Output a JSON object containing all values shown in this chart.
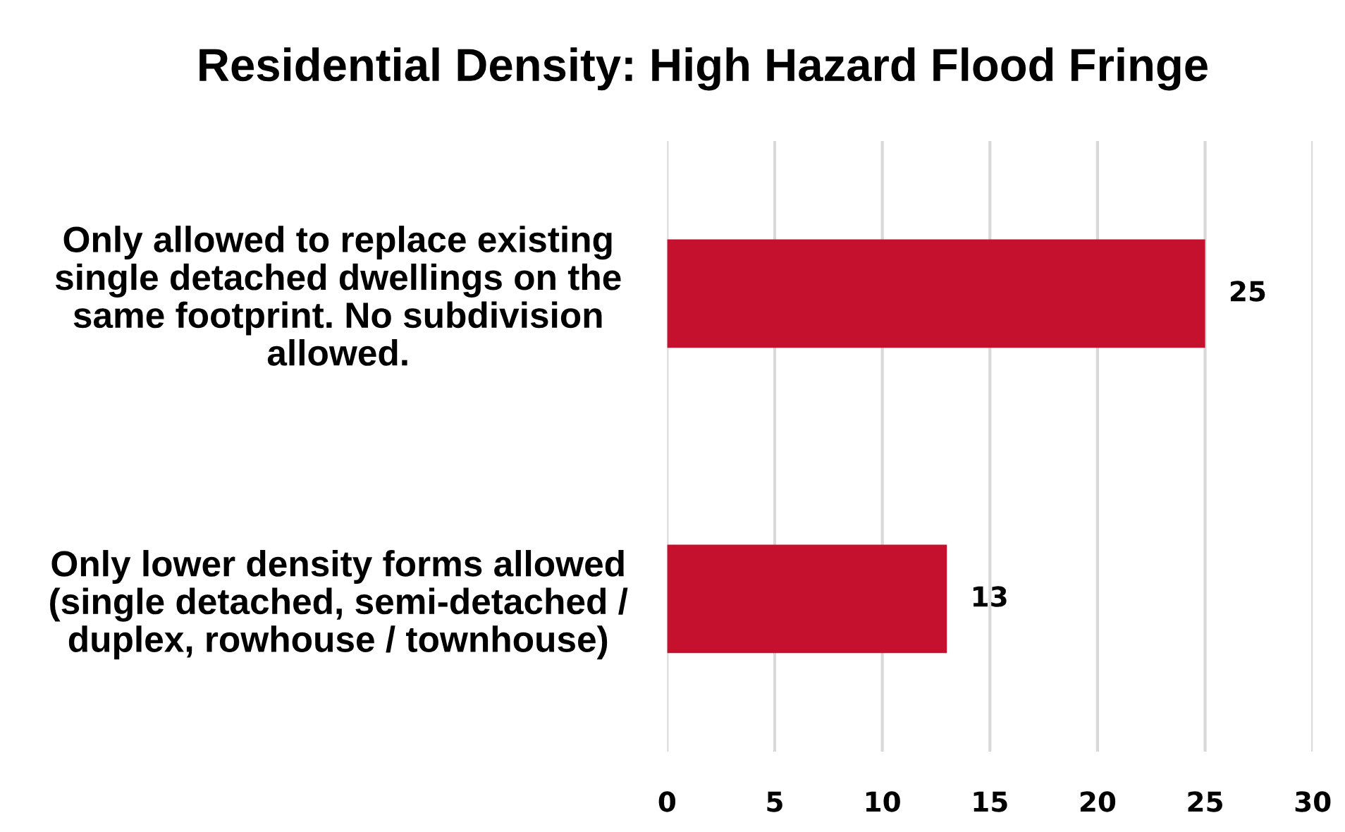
{
  "chart_data": {
    "type": "bar",
    "orientation": "horizontal",
    "title": "Residential Density: High Hazard Flood Fringe",
    "categories": [
      "Only allowed to replace existing\nsingle detached dwellings on the\nsame footprint. No subdivision\nallowed.",
      "Only lower density forms allowed\n(single detached, semi-detached /\nduplex, rowhouse / townhouse)"
    ],
    "values": [
      25,
      13
    ],
    "color": "#c5102e",
    "xlim": [
      0,
      30
    ],
    "xticks": [
      0,
      5,
      10,
      15,
      20,
      25,
      30
    ],
    "grid": "x",
    "data_labels": true
  }
}
